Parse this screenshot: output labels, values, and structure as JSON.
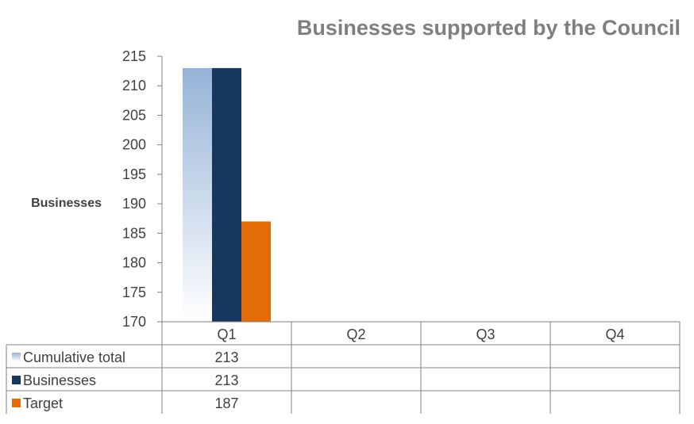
{
  "chart_data": {
    "type": "bar",
    "title": "Businesses supported by the Council",
    "ylabel": "Businesses",
    "xlabel": "",
    "ylim": [
      170,
      215
    ],
    "yticks": [
      170,
      175,
      180,
      185,
      190,
      195,
      200,
      205,
      210,
      215
    ],
    "categories": [
      "Q1",
      "Q2",
      "Q3",
      "Q4"
    ],
    "series": [
      {
        "name": "Cumulative total",
        "values": [
          213,
          null,
          null,
          null
        ],
        "color": "#95b3d7",
        "fill": "gradient"
      },
      {
        "name": "Businesses",
        "values": [
          213,
          null,
          null,
          null
        ],
        "color": "#17375e"
      },
      {
        "name": "Target",
        "values": [
          187,
          null,
          null,
          null
        ],
        "color": "#e36c09"
      }
    ],
    "data_table": {
      "rows": [
        {
          "label": "Cumulative total",
          "cells": [
            "213",
            "",
            "",
            ""
          ]
        },
        {
          "label": "Businesses",
          "cells": [
            "213",
            "",
            "",
            ""
          ]
        },
        {
          "label": "Target",
          "cells": [
            "187",
            "",
            "",
            ""
          ]
        }
      ]
    },
    "grid": false,
    "legend": "data-table"
  }
}
